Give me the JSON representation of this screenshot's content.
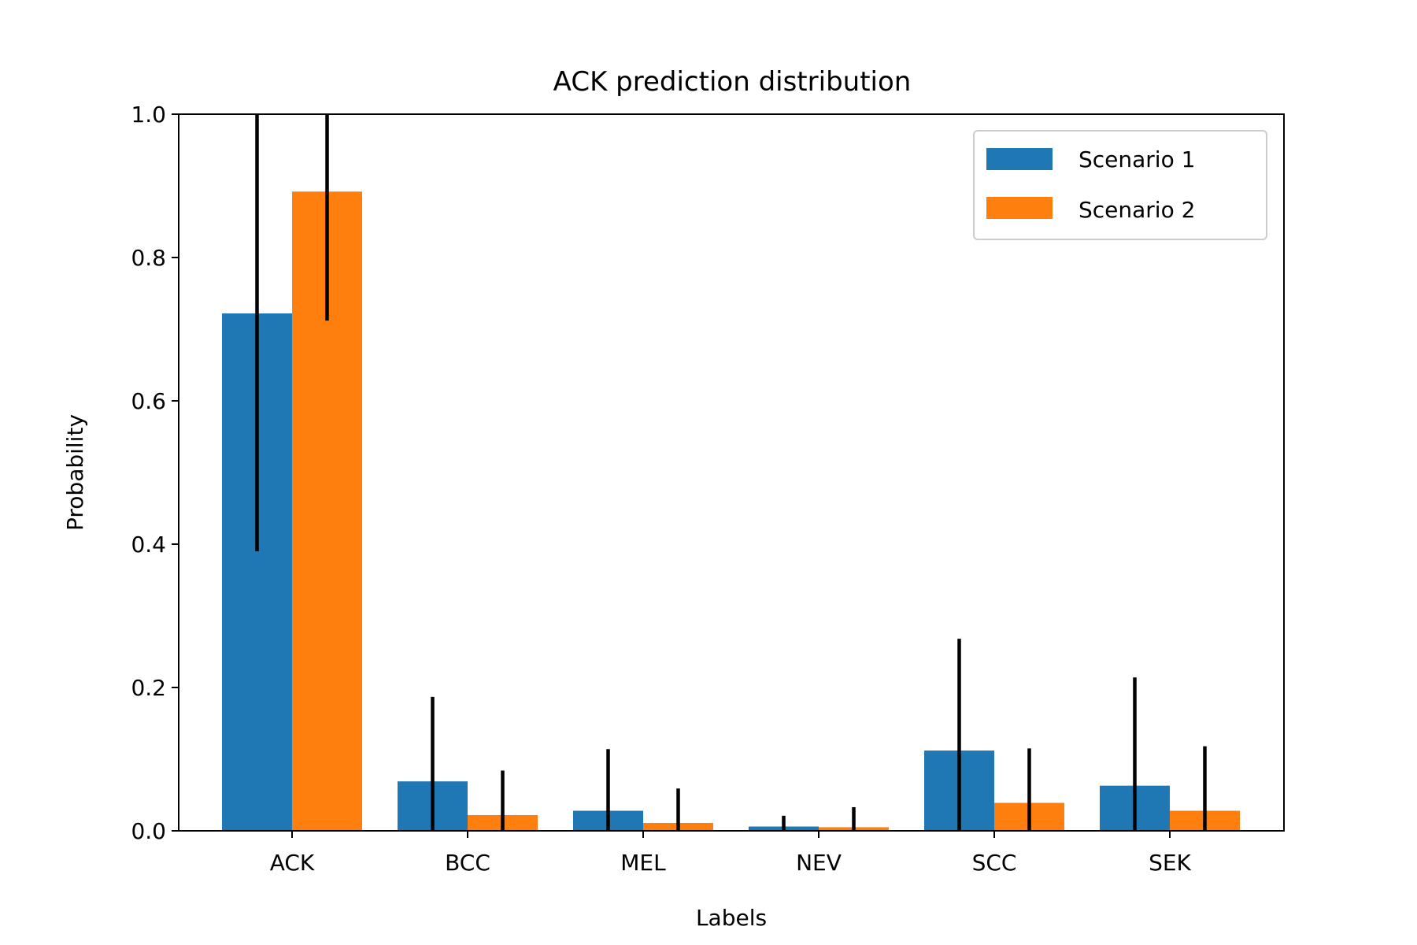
{
  "chart_data": {
    "type": "bar",
    "title": "ACK prediction distribution",
    "xlabel": "Labels",
    "ylabel": "Probability",
    "ylim": [
      0,
      1.0
    ],
    "yticks": [
      "0.0",
      "0.2",
      "0.4",
      "0.6",
      "0.8",
      "1.0"
    ],
    "categories": [
      "ACK",
      "BCC",
      "MEL",
      "NEV",
      "SCC",
      "SEK"
    ],
    "legend_position": "top-right",
    "series": [
      {
        "name": "Scenario 1",
        "color": "#1f77b4",
        "values": [
          0.722,
          0.069,
          0.028,
          0.006,
          0.112,
          0.063
        ],
        "err_low": [
          0.39,
          0.0,
          0.0,
          0.0,
          0.0,
          0.0
        ],
        "err_high": [
          1.0,
          0.187,
          0.114,
          0.021,
          0.268,
          0.214
        ]
      },
      {
        "name": "Scenario 2",
        "color": "#ff7f0e",
        "values": [
          0.892,
          0.022,
          0.011,
          0.005,
          0.039,
          0.028
        ],
        "err_low": [
          0.712,
          0.0,
          0.0,
          0.0,
          0.0,
          0.0
        ],
        "err_high": [
          1.0,
          0.084,
          0.059,
          0.033,
          0.115,
          0.118
        ]
      }
    ]
  }
}
